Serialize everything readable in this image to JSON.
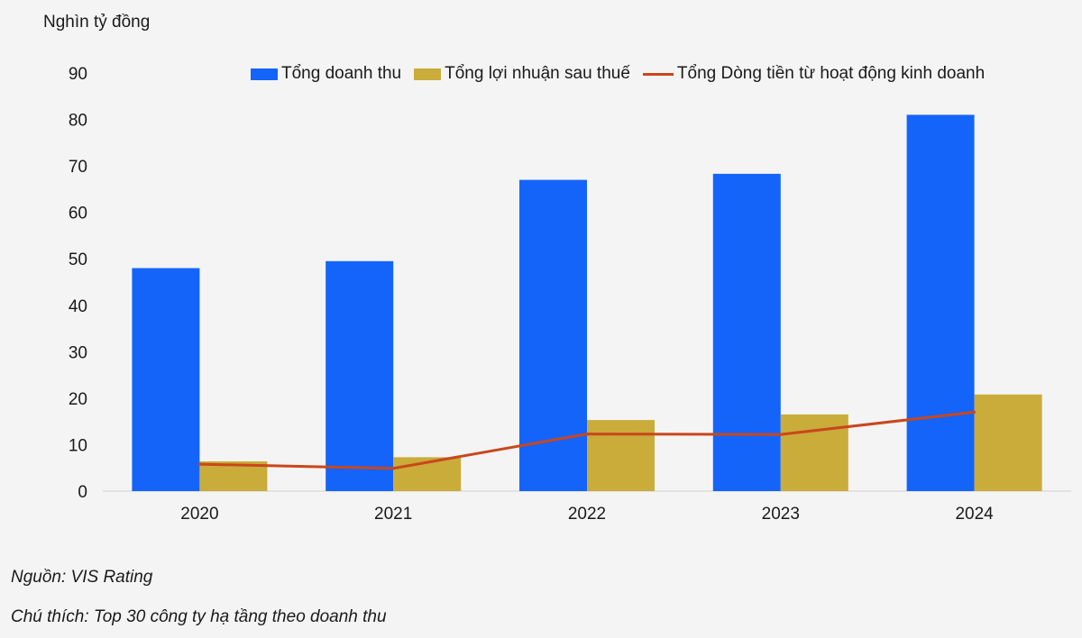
{
  "unit_label": "Nghìn tỷ đồng",
  "source": "Nguồn: VIS Rating",
  "note": "Chú thích: Top 30 công ty hạ tầng theo doanh thu",
  "colors": {
    "revenue": "#1464fa",
    "profit": "#c9ac3a",
    "cashflow": "#c9471b"
  },
  "chart_data": {
    "type": "bar",
    "categories": [
      "2020",
      "2021",
      "2022",
      "2023",
      "2024"
    ],
    "ylim": [
      0,
      90
    ],
    "yticks": [
      0,
      10,
      20,
      30,
      40,
      50,
      60,
      70,
      80,
      90
    ],
    "ylabel": "Nghìn tỷ đồng",
    "legend_position": "top-right",
    "grid": false,
    "series": [
      {
        "name": "Tổng doanh thu",
        "type": "bar",
        "values": [
          48,
          49.5,
          67,
          68.3,
          81
        ]
      },
      {
        "name": "Tổng lợi nhuận sau thuế",
        "type": "bar",
        "values": [
          6.4,
          7.3,
          15.3,
          16.5,
          20.8
        ]
      },
      {
        "name": "Tổng Dòng tiền từ hoạt động kinh doanh",
        "type": "line",
        "values": [
          5.8,
          4.9,
          12.3,
          12.2,
          17
        ]
      }
    ]
  }
}
